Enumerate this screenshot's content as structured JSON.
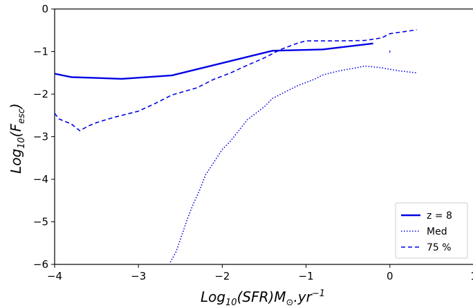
{
  "chart_data": {
    "type": "line",
    "title": "",
    "xlabel": "Log_{10}(SFR)M_{⊙}.yr^{-1}",
    "ylabel": "Log_{10}(F_{esc})",
    "xlim": [
      -4,
      1
    ],
    "ylim": [
      -6,
      0
    ],
    "xticks": [
      -4,
      -3,
      -2,
      -1,
      0,
      1
    ],
    "yticks": [
      -6,
      -5,
      -4,
      -3,
      -2,
      -1,
      0
    ],
    "xtick_labels": [
      "−4",
      "−3",
      "−2",
      "−1",
      "0",
      "1"
    ],
    "ytick_labels": [
      "−6",
      "−5",
      "−4",
      "−3",
      "−2",
      "−1",
      "0"
    ],
    "grid": false,
    "legend_position": "lower right",
    "series": [
      {
        "name": "z = 8",
        "style": "solid",
        "color": "#0000e6",
        "x": [
          -4.0,
          -3.8,
          -3.2,
          -2.6,
          -1.4,
          -0.8,
          -0.2
        ],
        "y": [
          -1.52,
          -1.6,
          -1.64,
          -1.56,
          -0.98,
          -0.95,
          -0.81
        ]
      },
      {
        "name": "Med",
        "style": "dotted",
        "color": "#0000e6",
        "x": [
          -2.62,
          -2.55,
          -2.48,
          -2.41,
          -2.35,
          -2.28,
          -2.2,
          -2.1,
          -2.0,
          -1.9,
          -1.8,
          -1.7,
          -1.6,
          -1.5,
          -1.4,
          -1.3,
          -1.1,
          -0.9,
          -0.8,
          -0.6,
          -0.4,
          -0.3,
          -0.1,
          0.1,
          0.32
        ],
        "y": [
          -5.95,
          -5.7,
          -5.3,
          -4.9,
          -4.6,
          -4.3,
          -3.9,
          -3.6,
          -3.3,
          -3.1,
          -2.85,
          -2.6,
          -2.45,
          -2.3,
          -2.1,
          -2.0,
          -1.8,
          -1.65,
          -1.55,
          -1.45,
          -1.38,
          -1.34,
          -1.38,
          -1.45,
          -1.5
        ]
      },
      {
        "name": "75 %",
        "style": "dashed",
        "color": "#0000e6",
        "x": [
          -4.0,
          -3.95,
          -3.8,
          -3.7,
          -3.6,
          -3.5,
          -3.3,
          -3.0,
          -2.8,
          -2.6,
          -2.3,
          -2.1,
          -1.9,
          -1.7,
          -1.5,
          -1.3,
          -1.1,
          -1.0,
          -0.8,
          -0.6,
          -0.3,
          -0.1,
          0.0,
          0.32
        ],
        "y": [
          -2.45,
          -2.58,
          -2.7,
          -2.86,
          -2.75,
          -2.67,
          -2.55,
          -2.4,
          -2.22,
          -2.02,
          -1.85,
          -1.65,
          -1.5,
          -1.32,
          -1.15,
          -0.95,
          -0.8,
          -0.75,
          -0.75,
          -0.75,
          -0.74,
          -0.68,
          -0.58,
          -0.49
        ]
      }
    ],
    "annotations": [
      {
        "x": 0.0,
        "y": -1.0,
        "marker": "tiny-dot"
      }
    ]
  }
}
